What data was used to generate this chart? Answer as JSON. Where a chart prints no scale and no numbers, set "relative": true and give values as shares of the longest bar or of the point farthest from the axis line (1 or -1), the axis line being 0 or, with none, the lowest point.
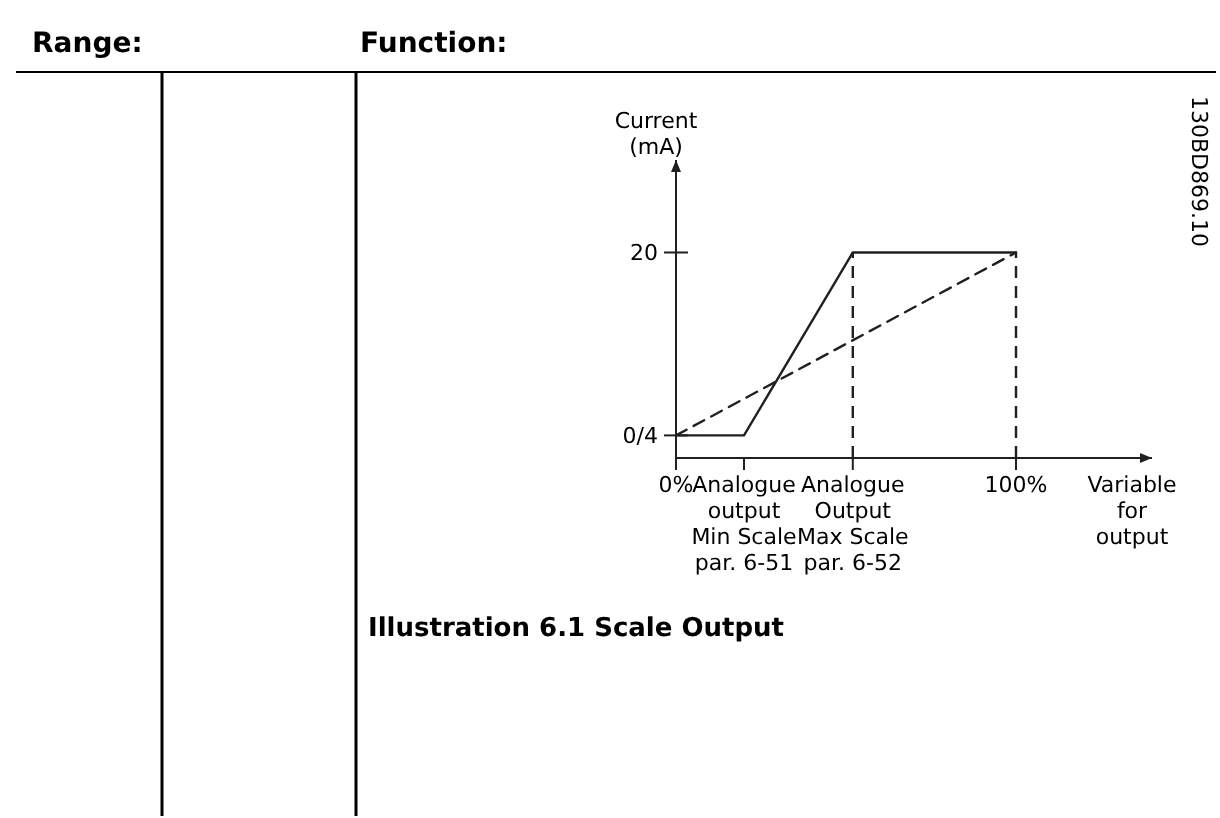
{
  "chart_data": {
    "type": "line",
    "relative": true,
    "xlabel": "Variable for output",
    "ylabel": "Current (mA)",
    "annotations": [
      "Range:",
      "Function:",
      "130BD869.10",
      "Illustration 6.1 Scale Output",
      "0/4",
      "20"
    ],
    "xlim": [
      0,
      140
    ],
    "xticks": [
      {
        "value": 0,
        "label": "0%"
      },
      {
        "value": 20,
        "label": "Analogue output Min Scale par. 6-51"
      },
      {
        "value": 52,
        "label": "Analogue Output Max Scale par. 6-52"
      },
      {
        "value": 100,
        "label": "100%"
      }
    ],
    "series": [
      {
        "color": "#231f20",
        "line_style": "solid",
        "x": [
          0,
          20,
          52,
          100
        ],
        "values": [
          0.11,
          0.11,
          1,
          1
        ]
      },
      {
        "color": "#231f20",
        "line_style": "dashed",
        "x": [
          0,
          100
        ],
        "values": [
          0.11,
          1
        ]
      }
    ],
    "ref_lines": [
      {
        "axis": "x",
        "value": 52,
        "color": "#231f20",
        "line_style": "dashed"
      },
      {
        "axis": "x",
        "value": 100,
        "color": "#231f20",
        "line_style": "dashed"
      }
    ],
    "marker": "none"
  }
}
